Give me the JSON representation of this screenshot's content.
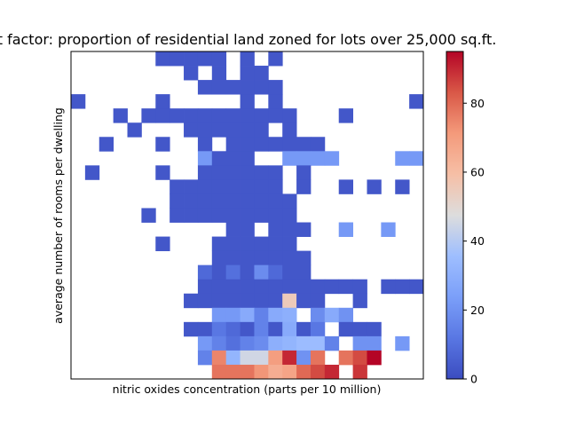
{
  "chart_data": {
    "type": "heatmap",
    "title": "t factor: proportion of residential land zoned for lots over 25,000 sq.ft.",
    "xlabel": "nitric oxides concentration (parts per 10 million)",
    "ylabel": "average number of rooms per dwelling",
    "colormap": "coolwarm",
    "colorbar": {
      "range": [
        0,
        95
      ],
      "ticks": [
        0,
        20,
        40,
        60,
        80
      ],
      "tick_labels": [
        "0",
        "20",
        "40",
        "60",
        "80"
      ],
      "color_low": "#3b4cc0",
      "color_mid": "#dddddd",
      "color_high": "#b40426"
    },
    "grid": false,
    "x_bins": 25,
    "y_bins": 23,
    "cells": [
      [
        0,
        6,
        3
      ],
      [
        0,
        7,
        3
      ],
      [
        0,
        8,
        3
      ],
      [
        0,
        9,
        3
      ],
      [
        0,
        10,
        3
      ],
      [
        0,
        12,
        3
      ],
      [
        0,
        14,
        3
      ],
      [
        1,
        8,
        3
      ],
      [
        1,
        10,
        3
      ],
      [
        1,
        12,
        3
      ],
      [
        1,
        13,
        3
      ],
      [
        2,
        9,
        3
      ],
      [
        2,
        10,
        3
      ],
      [
        2,
        11,
        3
      ],
      [
        2,
        12,
        3
      ],
      [
        2,
        13,
        3
      ],
      [
        2,
        14,
        3
      ],
      [
        3,
        0,
        3
      ],
      [
        3,
        6,
        3
      ],
      [
        3,
        12,
        3
      ],
      [
        3,
        14,
        3
      ],
      [
        3,
        24,
        3
      ],
      [
        4,
        3,
        3
      ],
      [
        4,
        5,
        3
      ],
      [
        4,
        6,
        3
      ],
      [
        4,
        7,
        3
      ],
      [
        4,
        8,
        3
      ],
      [
        4,
        9,
        3
      ],
      [
        4,
        10,
        3
      ],
      [
        4,
        11,
        3
      ],
      [
        4,
        12,
        3
      ],
      [
        4,
        13,
        3
      ],
      [
        4,
        14,
        3
      ],
      [
        4,
        15,
        3
      ],
      [
        4,
        19,
        3
      ],
      [
        5,
        4,
        3
      ],
      [
        5,
        8,
        3
      ],
      [
        5,
        9,
        3
      ],
      [
        5,
        10,
        3
      ],
      [
        5,
        11,
        3
      ],
      [
        5,
        12,
        3
      ],
      [
        5,
        13,
        3
      ],
      [
        5,
        15,
        3
      ],
      [
        6,
        2,
        3
      ],
      [
        6,
        6,
        3
      ],
      [
        6,
        9,
        3
      ],
      [
        6,
        11,
        3
      ],
      [
        6,
        12,
        3
      ],
      [
        6,
        13,
        3
      ],
      [
        6,
        14,
        3
      ],
      [
        6,
        15,
        3
      ],
      [
        6,
        16,
        3
      ],
      [
        6,
        17,
        3
      ],
      [
        7,
        9,
        22
      ],
      [
        7,
        10,
        3
      ],
      [
        7,
        11,
        3
      ],
      [
        7,
        12,
        3
      ],
      [
        7,
        15,
        22
      ],
      [
        7,
        16,
        22
      ],
      [
        7,
        17,
        22
      ],
      [
        7,
        18,
        22
      ],
      [
        7,
        23,
        22
      ],
      [
        7,
        24,
        22
      ],
      [
        8,
        1,
        3
      ],
      [
        8,
        6,
        3
      ],
      [
        8,
        9,
        3
      ],
      [
        8,
        10,
        3
      ],
      [
        8,
        11,
        3
      ],
      [
        8,
        12,
        3
      ],
      [
        8,
        13,
        3
      ],
      [
        8,
        14,
        3
      ],
      [
        8,
        16,
        3
      ],
      [
        9,
        7,
        3
      ],
      [
        9,
        8,
        3
      ],
      [
        9,
        9,
        3
      ],
      [
        9,
        10,
        3
      ],
      [
        9,
        11,
        3
      ],
      [
        9,
        12,
        3
      ],
      [
        9,
        13,
        3
      ],
      [
        9,
        14,
        3
      ],
      [
        9,
        16,
        3
      ],
      [
        9,
        19,
        3
      ],
      [
        9,
        21,
        3
      ],
      [
        9,
        23,
        3
      ],
      [
        10,
        7,
        3
      ],
      [
        10,
        8,
        3
      ],
      [
        10,
        9,
        3
      ],
      [
        10,
        10,
        3
      ],
      [
        10,
        11,
        3
      ],
      [
        10,
        12,
        3
      ],
      [
        10,
        13,
        3
      ],
      [
        10,
        14,
        3
      ],
      [
        10,
        15,
        3
      ],
      [
        11,
        5,
        3
      ],
      [
        11,
        7,
        3
      ],
      [
        11,
        8,
        3
      ],
      [
        11,
        9,
        3
      ],
      [
        11,
        10,
        3
      ],
      [
        11,
        11,
        3
      ],
      [
        11,
        12,
        3
      ],
      [
        11,
        13,
        3
      ],
      [
        11,
        14,
        3
      ],
      [
        11,
        15,
        3
      ],
      [
        12,
        11,
        3
      ],
      [
        12,
        12,
        3
      ],
      [
        12,
        14,
        3
      ],
      [
        12,
        15,
        3
      ],
      [
        12,
        16,
        3
      ],
      [
        12,
        19,
        22
      ],
      [
        12,
        22,
        22
      ],
      [
        13,
        6,
        3
      ],
      [
        13,
        10,
        3
      ],
      [
        13,
        11,
        3
      ],
      [
        13,
        12,
        3
      ],
      [
        13,
        13,
        3
      ],
      [
        13,
        14,
        3
      ],
      [
        13,
        15,
        3
      ],
      [
        14,
        10,
        3
      ],
      [
        14,
        11,
        3
      ],
      [
        14,
        12,
        3
      ],
      [
        14,
        13,
        3
      ],
      [
        14,
        14,
        3
      ],
      [
        14,
        15,
        3
      ],
      [
        14,
        16,
        3
      ],
      [
        15,
        9,
        8
      ],
      [
        15,
        10,
        3
      ],
      [
        15,
        11,
        10
      ],
      [
        15,
        12,
        3
      ],
      [
        15,
        13,
        18
      ],
      [
        15,
        14,
        8
      ],
      [
        15,
        15,
        3
      ],
      [
        15,
        16,
        3
      ],
      [
        16,
        9,
        3
      ],
      [
        16,
        10,
        3
      ],
      [
        16,
        11,
        3
      ],
      [
        16,
        12,
        3
      ],
      [
        16,
        13,
        3
      ],
      [
        16,
        14,
        3
      ],
      [
        16,
        15,
        3
      ],
      [
        16,
        16,
        3
      ],
      [
        16,
        17,
        3
      ],
      [
        16,
        18,
        3
      ],
      [
        16,
        19,
        3
      ],
      [
        16,
        20,
        3
      ],
      [
        16,
        22,
        3
      ],
      [
        16,
        23,
        3
      ],
      [
        16,
        24,
        3
      ],
      [
        17,
        8,
        3
      ],
      [
        17,
        9,
        3
      ],
      [
        17,
        10,
        3
      ],
      [
        17,
        11,
        3
      ],
      [
        17,
        12,
        3
      ],
      [
        17,
        13,
        3
      ],
      [
        17,
        14,
        3
      ],
      [
        17,
        15,
        55
      ],
      [
        17,
        16,
        3
      ],
      [
        17,
        17,
        3
      ],
      [
        17,
        20,
        3
      ],
      [
        18,
        10,
        22
      ],
      [
        18,
        11,
        22
      ],
      [
        18,
        12,
        28
      ],
      [
        18,
        13,
        15
      ],
      [
        18,
        14,
        28
      ],
      [
        18,
        15,
        30
      ],
      [
        18,
        17,
        18
      ],
      [
        18,
        18,
        28
      ],
      [
        18,
        19,
        20
      ],
      [
        19,
        8,
        3
      ],
      [
        19,
        9,
        3
      ],
      [
        19,
        10,
        12
      ],
      [
        19,
        11,
        8
      ],
      [
        19,
        12,
        3
      ],
      [
        19,
        13,
        15
      ],
      [
        19,
        14,
        3
      ],
      [
        19,
        15,
        28
      ],
      [
        19,
        16,
        3
      ],
      [
        19,
        17,
        12
      ],
      [
        19,
        19,
        3
      ],
      [
        19,
        20,
        3
      ],
      [
        19,
        21,
        3
      ],
      [
        20,
        9,
        22
      ],
      [
        20,
        10,
        15
      ],
      [
        20,
        11,
        10
      ],
      [
        20,
        12,
        15
      ],
      [
        20,
        13,
        18
      ],
      [
        20,
        14,
        30
      ],
      [
        20,
        15,
        32
      ],
      [
        20,
        16,
        35
      ],
      [
        20,
        17,
        35
      ],
      [
        20,
        18,
        15
      ],
      [
        20,
        20,
        20
      ],
      [
        20,
        21,
        20
      ],
      [
        20,
        23,
        22
      ],
      [
        21,
        9,
        15
      ],
      [
        21,
        10,
        75
      ],
      [
        21,
        11,
        32
      ],
      [
        21,
        12,
        45
      ],
      [
        21,
        13,
        45
      ],
      [
        21,
        14,
        70
      ],
      [
        21,
        15,
        90
      ],
      [
        21,
        16,
        20
      ],
      [
        21,
        17,
        78
      ],
      [
        21,
        19,
        78
      ],
      [
        21,
        20,
        85
      ],
      [
        21,
        21,
        95
      ],
      [
        22,
        10,
        78
      ],
      [
        22,
        11,
        78
      ],
      [
        22,
        12,
        78
      ],
      [
        22,
        13,
        72
      ],
      [
        22,
        14,
        65
      ],
      [
        22,
        15,
        68
      ],
      [
        22,
        16,
        80
      ],
      [
        22,
        17,
        85
      ],
      [
        22,
        18,
        90
      ],
      [
        22,
        20,
        88
      ]
    ]
  }
}
